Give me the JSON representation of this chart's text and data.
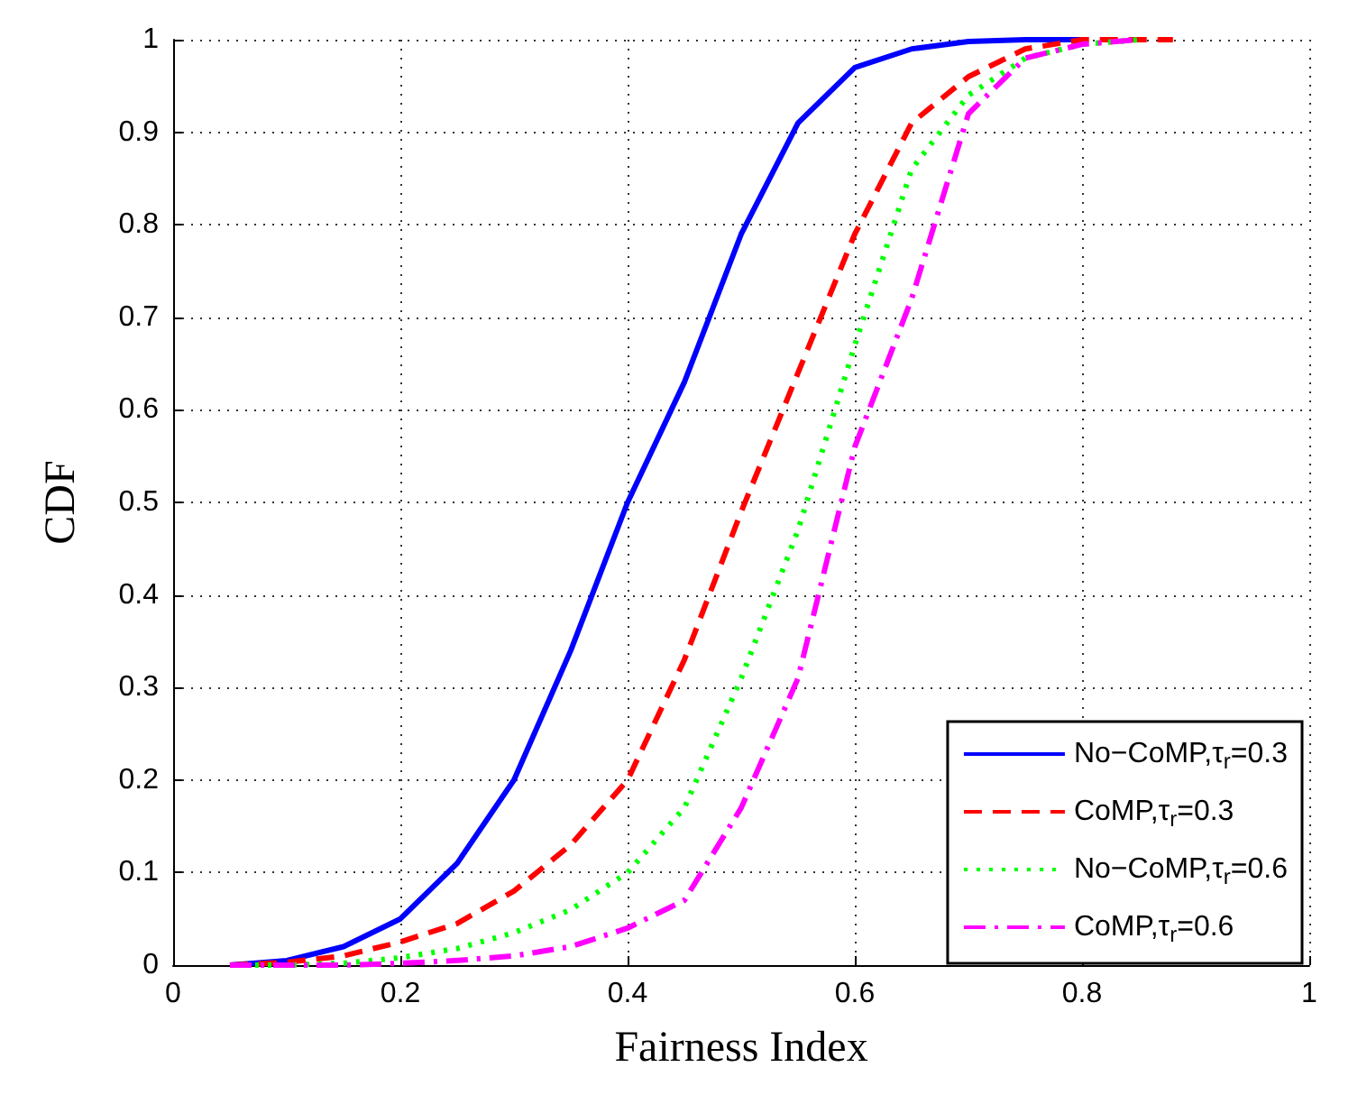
{
  "chart_data": {
    "type": "line",
    "xlabel": "Fairness Index",
    "ylabel": "CDF",
    "x": [
      0.05,
      0.1,
      0.15,
      0.2,
      0.25,
      0.3,
      0.35,
      0.4,
      0.45,
      0.5,
      0.55,
      0.6,
      0.65,
      0.7,
      0.75,
      0.8,
      0.85,
      0.88
    ],
    "series": [
      {
        "name": "No−CoMP,τ$_{r}$=0.3",
        "color": "#0000ff",
        "line_style": "solid",
        "values": [
          0,
          0.005,
          0.02,
          0.05,
          0.11,
          0.2,
          0.34,
          0.5,
          0.63,
          0.79,
          0.91,
          0.97,
          0.99,
          0.998,
          1,
          1,
          null,
          null
        ]
      },
      {
        "name": "CoMP,τ$_{r}$=0.3",
        "color": "#ff0000",
        "line_style": "dashed",
        "values": [
          0,
          0.003,
          0.01,
          0.025,
          0.045,
          0.08,
          0.13,
          0.2,
          0.33,
          0.49,
          0.64,
          0.79,
          0.91,
          0.96,
          0.99,
          1,
          1,
          1
        ]
      },
      {
        "name": "No−CoMP,τ$_{r}$=0.6",
        "color": "#00ff00",
        "line_style": "dotted",
        "values": [
          0,
          0,
          0.002,
          0.008,
          0.018,
          0.035,
          0.06,
          0.1,
          0.17,
          0.31,
          0.47,
          0.67,
          0.86,
          0.94,
          0.98,
          0.995,
          1,
          null
        ]
      },
      {
        "name": "CoMP,τ$_{r}$=0.6",
        "color": "#ff00ff",
        "line_style": "dashdot",
        "values": [
          0,
          0,
          0,
          0.002,
          0.005,
          0.01,
          0.02,
          0.04,
          0.07,
          0.17,
          0.31,
          0.56,
          0.72,
          0.92,
          0.98,
          0.995,
          1,
          null
        ]
      }
    ],
    "xlim": [
      0,
      1
    ],
    "xticks": [
      0,
      0.2,
      0.4,
      0.6,
      0.8,
      1
    ],
    "ylim": [
      0,
      1
    ],
    "yticks": [
      0,
      0.1,
      0.2,
      0.3,
      0.4,
      0.5,
      0.6,
      0.7,
      0.8,
      0.9,
      1
    ],
    "grid": true,
    "legend": "bottom right",
    "marker": "none"
  }
}
